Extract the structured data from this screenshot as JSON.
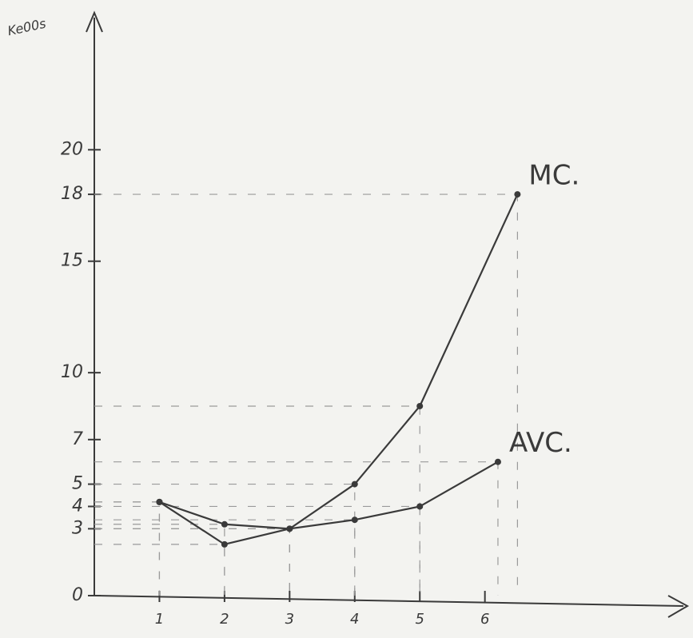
{
  "chart_data": {
    "type": "line",
    "y_label": "Ke00s",
    "series": [
      {
        "name": "MC.",
        "color": "#3a3a3a",
        "x": [
          1,
          2,
          3,
          4,
          5,
          6.5
        ],
        "values": [
          4.2,
          2.3,
          3,
          5,
          8.5,
          18
        ]
      },
      {
        "name": "AVC.",
        "color": "#3a3a3a",
        "x": [
          1,
          2,
          3,
          4,
          5,
          6.2
        ],
        "values": [
          4.2,
          3.2,
          3,
          3.4,
          4,
          6
        ]
      }
    ],
    "xlim": [
      0,
      9
    ],
    "xticks": [
      1,
      2,
      3,
      4,
      5,
      6
    ],
    "ylim": [
      0,
      26
    ],
    "yticks": [
      0,
      3,
      4,
      5,
      7,
      10,
      15,
      18,
      20
    ]
  }
}
